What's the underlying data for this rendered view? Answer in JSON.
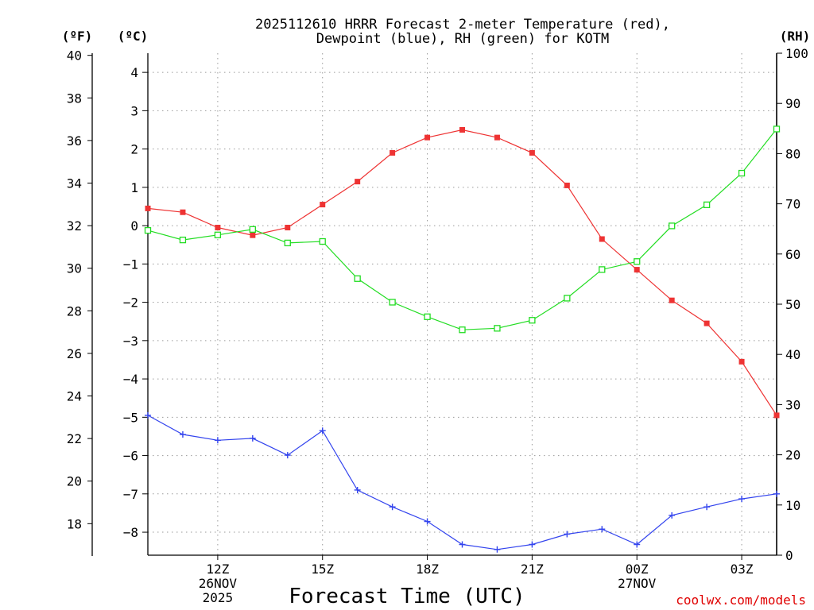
{
  "chart_data": {
    "type": "line",
    "title_lines": [
      "2025112610 HRRR Forecast 2-meter Temperature (red),",
      "Dewpoint (blue), RH (green) for KOTM"
    ],
    "station": "KOTM",
    "xlabel": "Forecast Time (UTC)",
    "credit": "coolwx.com/models",
    "x_hours": [
      10,
      11,
      12,
      13,
      14,
      15,
      16,
      17,
      18,
      19,
      20,
      21,
      22,
      23,
      24,
      25,
      26,
      27,
      28
    ],
    "x_range": [
      10,
      28
    ],
    "x_ticks": [
      {
        "hour": 12,
        "lines": [
          "12Z",
          "26NOV",
          "2025"
        ]
      },
      {
        "hour": 15,
        "lines": [
          "15Z"
        ]
      },
      {
        "hour": 18,
        "lines": [
          "18Z"
        ]
      },
      {
        "hour": 21,
        "lines": [
          "21Z"
        ]
      },
      {
        "hour": 24,
        "lines": [
          "00Z",
          "27NOV"
        ]
      },
      {
        "hour": 27,
        "lines": [
          "03Z"
        ]
      }
    ],
    "axes": {
      "celsius": {
        "unit_label": "(ºC)",
        "range": [
          -8.6,
          4.5
        ],
        "ticks": [
          "4",
          "3",
          "2",
          "1",
          "0",
          "−1",
          "−2",
          "−3",
          "−4",
          "−5",
          "−6",
          "−7",
          "−8"
        ],
        "tick_values": [
          4,
          3,
          2,
          1,
          0,
          -1,
          -2,
          -3,
          -4,
          -5,
          -6,
          -7,
          -8
        ]
      },
      "fahrenheit": {
        "unit_label": "(ºF)",
        "range": [
          16.52,
          40.1
        ],
        "ticks": [
          "40",
          "38",
          "36",
          "34",
          "32",
          "30",
          "28",
          "26",
          "24",
          "22",
          "20",
          "18"
        ],
        "tick_values": [
          40,
          38,
          36,
          34,
          32,
          30,
          28,
          26,
          24,
          22,
          20,
          18
        ]
      },
      "rh": {
        "unit_label": "(RH)",
        "range": [
          0,
          100
        ],
        "ticks": [
          "100",
          "90",
          "80",
          "70",
          "60",
          "50",
          "40",
          "30",
          "20",
          "10",
          "0"
        ],
        "tick_values": [
          100,
          90,
          80,
          70,
          60,
          50,
          40,
          30,
          20,
          10,
          0
        ]
      }
    },
    "series": [
      {
        "name": "Temperature",
        "color": "#ee3333",
        "marker": "filled-square",
        "axis": "celsius",
        "values": [
          0.45,
          0.35,
          -0.05,
          -0.25,
          -0.05,
          0.55,
          1.15,
          1.9,
          2.3,
          2.5,
          2.3,
          1.9,
          1.05,
          -0.35,
          -1.15,
          -1.95,
          -2.55,
          -3.55,
          -4.95
        ]
      },
      {
        "name": "Dewpoint",
        "color": "#3344ee",
        "marker": "plus",
        "axis": "celsius",
        "values": [
          -4.95,
          -5.45,
          -5.6,
          -5.55,
          -5.99,
          -5.35,
          -6.9,
          -7.34,
          -7.72,
          -8.32,
          -8.45,
          -8.32,
          -8.05,
          -7.92,
          -8.32,
          -7.56,
          -7.34,
          -7.13,
          -7.0
        ]
      },
      {
        "name": "RH",
        "color": "#22dd22",
        "marker": "open-square",
        "axis": "rh",
        "values": [
          64.7,
          62.8,
          63.8,
          64.9,
          62.2,
          62.5,
          55.1,
          50.4,
          47.5,
          44.9,
          45.2,
          46.8,
          51.2,
          56.9,
          58.5,
          65.6,
          69.8,
          76.1,
          84.9
        ]
      }
    ]
  }
}
